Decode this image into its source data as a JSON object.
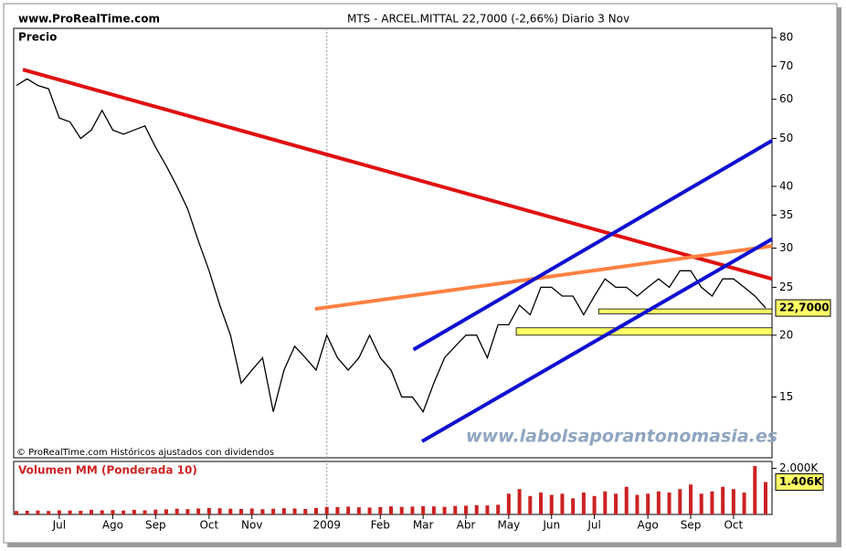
{
  "header": {
    "site": "www.ProRealTime.com",
    "title": "MTS - ARCEL.MITTAL    22,7000 (-2,66%)    Diario  3 Nov"
  },
  "chart_data": [
    {
      "type": "line",
      "y_label": "Precio",
      "footnote": "© ProRealTime.com Históricos ajustados con dividendos",
      "watermark": "www.labolsaporantonomasia.es",
      "categories": [
        null,
        null,
        null,
        null,
        "Jul",
        null,
        null,
        null,
        null,
        "Ago",
        null,
        null,
        null,
        "Sep",
        null,
        null,
        null,
        null,
        "Oct",
        null,
        null,
        null,
        "Nov",
        null,
        null,
        null,
        null,
        null,
        null,
        "2009",
        null,
        null,
        null,
        null,
        "Feb",
        null,
        null,
        null,
        "Mar",
        null,
        null,
        null,
        "Abr",
        null,
        null,
        null,
        "May",
        null,
        null,
        null,
        "Jun",
        null,
        null,
        null,
        "Jul",
        null,
        null,
        null,
        null,
        "Ago",
        null,
        null,
        null,
        "Sep",
        null,
        null,
        null,
        "Oct",
        null,
        null,
        null
      ],
      "series": [
        {
          "color": "#000000",
          "values": [
            64,
            66,
            64,
            63,
            55,
            54,
            50,
            52,
            57,
            52,
            51,
            52,
            53,
            48,
            44,
            40,
            36,
            31,
            27,
            23,
            20,
            16,
            17,
            18,
            14,
            17,
            19,
            18,
            17,
            20,
            18,
            17,
            18,
            20,
            18,
            17,
            15,
            15,
            14,
            16,
            18,
            19,
            20,
            20,
            18,
            21,
            21,
            23,
            22,
            25,
            25,
            24,
            24,
            22,
            24,
            26,
            25,
            25,
            24,
            25,
            26,
            25,
            27,
            27,
            25,
            24,
            26,
            26,
            25,
            24,
            22.7
          ]
        }
      ],
      "log_scale": true,
      "ylim": [
        11.3,
        83.5
      ],
      "yticks": [
        15,
        20,
        25,
        30,
        35,
        40,
        50,
        60,
        70,
        80
      ],
      "last_label": {
        "value": 22.7,
        "label": "22,7000"
      },
      "trendlines": [
        {
          "color": "#e01010",
          "from": [
            0.6,
            68.9
          ],
          "to": [
            70.6,
            26.0
          ]
        },
        {
          "color": "#ff8040",
          "from": [
            27.9,
            22.6
          ],
          "to": [
            70.6,
            30.3
          ]
        },
        {
          "color": "#1010d0",
          "from": [
            37.1,
            18.7
          ],
          "to": [
            70.6,
            49.5
          ]
        },
        {
          "color": "#1010d0",
          "from": [
            37.9,
            12.2
          ],
          "to": [
            70.6,
            31.3
          ]
        }
      ],
      "bands": [
        {
          "color": "#ffff66",
          "from": 54.4,
          "range": [
            22.1,
            22.6
          ]
        },
        {
          "color": "#ffff66",
          "from": 46.7,
          "range": [
            20.0,
            20.7
          ]
        }
      ]
    },
    {
      "type": "bar",
      "title": "Volumen MM (Ponderada 10)",
      "color": "#cc2222",
      "values": [
        150,
        160,
        170,
        150,
        180,
        170,
        160,
        200,
        180,
        190,
        170,
        200,
        180,
        210,
        220,
        250,
        230,
        260,
        280,
        270,
        250,
        240,
        260,
        230,
        250,
        270,
        260,
        240,
        280,
        330,
        320,
        340,
        310,
        300,
        320,
        350,
        330,
        340,
        360,
        350,
        330,
        370,
        380,
        400,
        390,
        420,
        900,
        1100,
        800,
        950,
        850,
        900,
        700,
        950,
        800,
        1000,
        900,
        1200,
        850,
        900,
        1000,
        950,
        1100,
        1300,
        900,
        1000,
        1200,
        1100,
        950,
        2100,
        1406
      ],
      "ylim": [
        0,
        2300
      ],
      "yticks": [
        {
          "value": 2000,
          "label": "2.000K"
        }
      ],
      "last_label": {
        "value": 1406,
        "label": "1.406K"
      }
    }
  ]
}
